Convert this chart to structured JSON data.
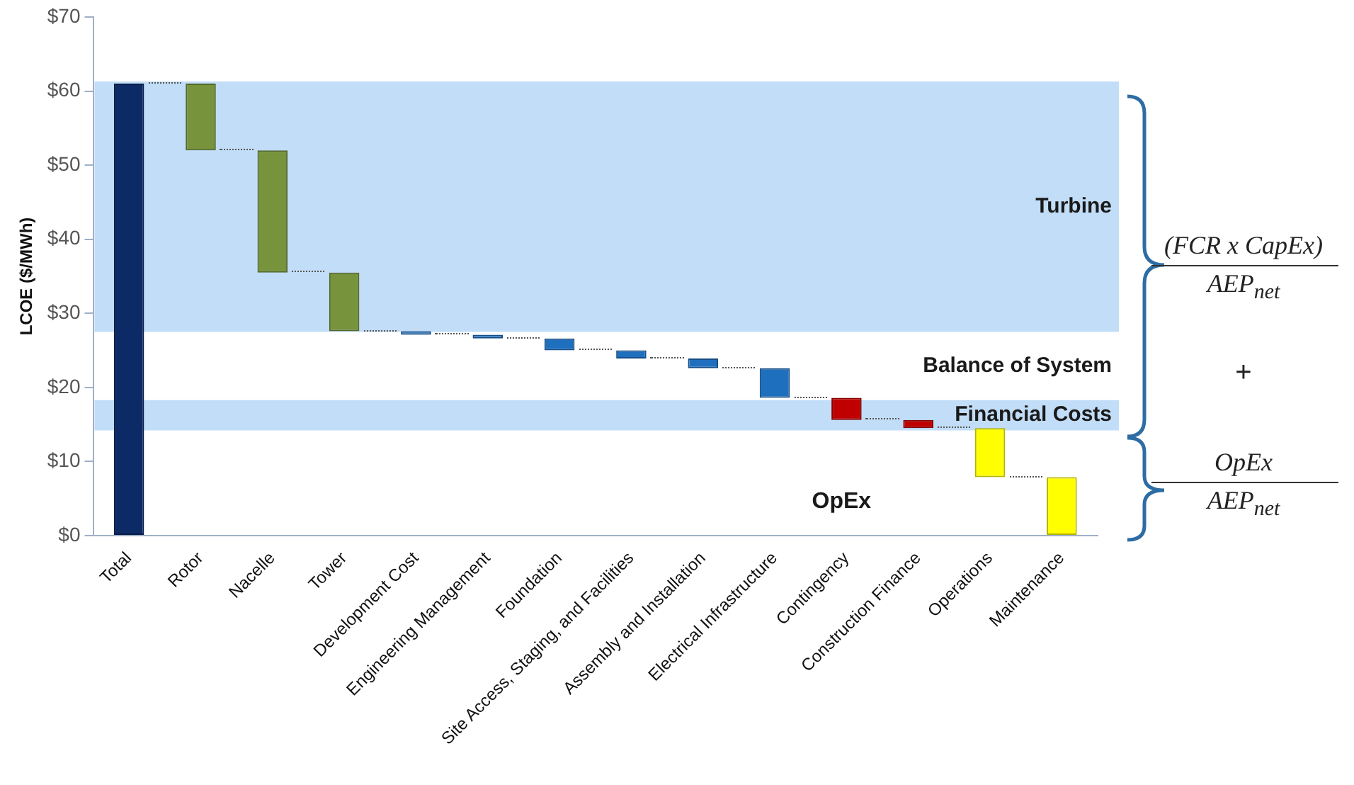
{
  "chart_data": {
    "type": "bar",
    "ylabel": "LCOE ($/MWh)",
    "categories": [
      "Total",
      "Rotor",
      "Nacelle",
      "Tower",
      "Development Cost",
      "Engineering Management",
      "Foundation",
      "Site Access, Staging, and Facilities",
      "Assembly and Installation",
      "Electrical Infrastructure",
      "Contingency",
      "Construction Finance",
      "Operations",
      "Maintenance"
    ],
    "values": [
      61,
      9,
      16.5,
      7.9,
      0.5,
      0.5,
      1.6,
      1.1,
      1.3,
      4.0,
      3.0,
      1.1,
      6.6,
      7.9
    ],
    "base": [
      0,
      52,
      35.5,
      27.6,
      27.1,
      26.6,
      25.0,
      23.9,
      22.6,
      18.6,
      15.6,
      14.5,
      7.9,
      0
    ],
    "colors": [
      "#0c2a66",
      "#77933c",
      "#77933c",
      "#77933c",
      "#1f6fbf",
      "#1f6fbf",
      "#1f6fbf",
      "#1f6fbf",
      "#1f6fbf",
      "#1f6fbf",
      "#c00000",
      "#c00000",
      "#ffff00",
      "#ffff00"
    ],
    "ylim": [
      0,
      70
    ],
    "yticks": [
      {
        "value": 0,
        "label": "$0"
      },
      {
        "value": 10,
        "label": "$10"
      },
      {
        "value": 20,
        "label": "$20"
      },
      {
        "value": 30,
        "label": "$30"
      },
      {
        "value": 40,
        "label": "$40"
      },
      {
        "value": 50,
        "label": "$50"
      },
      {
        "value": 60,
        "label": "$60"
      },
      {
        "value": 70,
        "label": "$70"
      }
    ],
    "grid": false,
    "legend": false,
    "bands": [
      {
        "axis": "y",
        "from": 27.5,
        "to": 61.3,
        "label": "Turbine",
        "color": "#c2ddf7"
      },
      {
        "axis": "y",
        "from": 14.2,
        "to": 18.3,
        "label": "Financial Costs",
        "color": "#c2ddf7"
      }
    ],
    "annotations": [
      "Balance of System",
      "OpEx",
      "(FCR x CapEx)",
      "AEP$_{net}$",
      "+",
      "OpEx",
      "AEP$_{net}$"
    ]
  }
}
